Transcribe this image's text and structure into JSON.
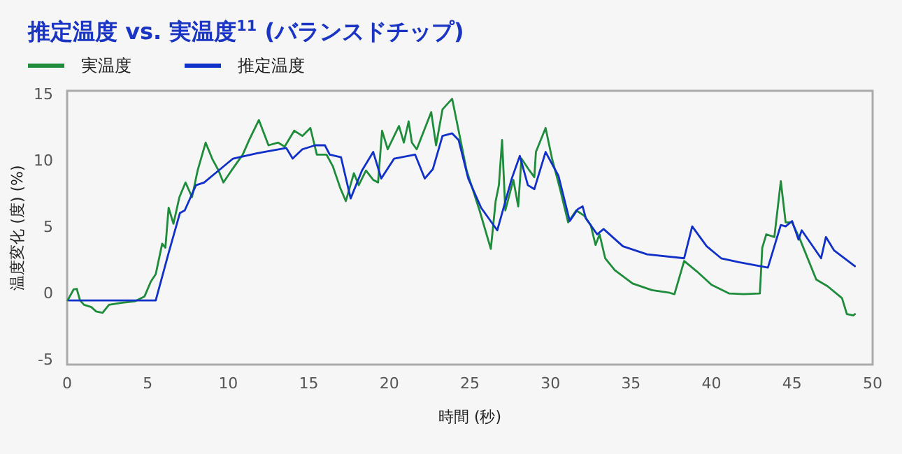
{
  "chart_data": {
    "type": "line",
    "title": "推定温度 vs. 実温度$^{11}$ (バランスドチップ)",
    "xlabel": "時間 (秒)",
    "ylabel": "温度変化 (度) (%)",
    "xlim": [
      0,
      50
    ],
    "ylim": [
      -5.4,
      15.2
    ],
    "xticks": [
      0,
      5,
      10,
      15,
      20,
      25,
      30,
      35,
      40,
      45,
      50
    ],
    "yticks": [
      -5,
      0,
      5,
      10,
      15
    ],
    "grid": false,
    "legend": "top left",
    "marker": "none",
    "line_style": "solid",
    "series": [
      {
        "name": "実温度",
        "color": "#1e8c3a",
        "x": [
          0.03,
          0.4,
          0.6,
          0.8,
          1.05,
          1.5,
          1.8,
          2.2,
          2.6,
          3.35,
          4.2,
          4.8,
          5.2,
          5.5,
          5.9,
          6.1,
          6.3,
          6.6,
          6.97,
          7.35,
          7.75,
          8.1,
          8.6,
          9.0,
          9.4,
          9.7,
          10.2,
          10.9,
          11.3,
          11.9,
          12.5,
          13.1,
          13.5,
          14.1,
          14.6,
          15.1,
          15.5,
          16.1,
          16.5,
          16.95,
          17.3,
          17.8,
          18.1,
          18.55,
          19.0,
          19.3,
          19.55,
          19.9,
          20.6,
          20.9,
          21.2,
          21.4,
          21.7,
          22.6,
          22.9,
          23.3,
          23.9,
          24.3,
          24.8,
          25.6,
          26.3,
          26.6,
          26.8,
          27.0,
          27.2,
          27.7,
          28.0,
          28.2,
          28.7,
          29.0,
          29.1,
          29.7,
          30.1,
          30.6,
          31.1,
          31.6,
          32.1,
          32.5,
          32.8,
          33.05,
          33.4,
          34.0,
          35.1,
          36.3,
          37.4,
          37.7,
          38.3,
          39.1,
          40.0,
          41.1,
          42.0,
          43.0,
          43.15,
          43.4,
          43.9,
          44.3,
          44.6,
          45.0,
          45.5,
          46.5,
          47.2,
          48.1,
          48.4,
          48.8,
          48.9
        ],
        "values": [
          -0.57,
          0.25,
          0.3,
          -0.57,
          -0.9,
          -1.07,
          -1.4,
          -1.5,
          -0.9,
          -0.75,
          -0.64,
          -0.28,
          0.85,
          1.4,
          3.7,
          3.4,
          6.4,
          5.2,
          7.2,
          8.3,
          7.2,
          9.2,
          11.3,
          10.1,
          9.2,
          8.3,
          9.2,
          10.4,
          11.5,
          13.0,
          11.1,
          11.3,
          11.0,
          12.2,
          11.8,
          12.4,
          10.4,
          10.4,
          9.5,
          7.9,
          6.9,
          9.0,
          8.1,
          9.2,
          8.5,
          8.3,
          12.2,
          10.8,
          12.55,
          11.3,
          12.9,
          11.3,
          10.8,
          13.6,
          11.1,
          13.8,
          14.6,
          12.2,
          9.2,
          6.2,
          3.3,
          6.9,
          8.1,
          11.5,
          6.2,
          8.5,
          6.5,
          10.1,
          9.2,
          8.7,
          10.6,
          12.4,
          10.1,
          7.8,
          5.3,
          6.2,
          5.8,
          5.1,
          3.6,
          4.4,
          2.6,
          1.7,
          0.7,
          0.2,
          0.0,
          -0.1,
          2.4,
          1.6,
          0.6,
          -0.05,
          -0.1,
          -0.05,
          3.4,
          4.4,
          4.2,
          8.4,
          5.3,
          5.3,
          4.0,
          1.0,
          0.5,
          -0.4,
          -1.6,
          -1.7,
          -1.6
        ]
      },
      {
        "name": "推定温度",
        "color": "#1030c8",
        "x": [
          0.1,
          5.5,
          6.3,
          7.0,
          7.3,
          8.0,
          8.5,
          9.2,
          10.3,
          11.8,
          13.6,
          14.0,
          14.6,
          15.4,
          16.0,
          16.3,
          17.0,
          17.6,
          18.3,
          19.0,
          19.5,
          20.3,
          21.6,
          22.2,
          22.7,
          23.3,
          23.9,
          24.3,
          24.9,
          25.7,
          26.7,
          27.6,
          28.1,
          28.6,
          29.0,
          29.7,
          30.5,
          31.2,
          31.7,
          32.0,
          32.2,
          32.9,
          33.3,
          34.5,
          36.0,
          38.3,
          38.8,
          39.7,
          40.6,
          41.7,
          43.5,
          44.3,
          44.6,
          45.0,
          45.4,
          45.6,
          46.8,
          47.1,
          47.6,
          48.9
        ],
        "values": [
          -0.57,
          -0.57,
          3.0,
          6.0,
          6.2,
          8.1,
          8.3,
          9.0,
          10.1,
          10.5,
          10.9,
          10.1,
          10.8,
          11.1,
          11.1,
          10.4,
          10.2,
          7.1,
          9.2,
          10.6,
          8.6,
          10.1,
          10.4,
          8.6,
          9.3,
          11.8,
          12.0,
          11.5,
          8.6,
          6.4,
          4.7,
          8.6,
          10.3,
          8.1,
          7.8,
          10.6,
          8.8,
          5.4,
          6.3,
          6.5,
          5.6,
          4.4,
          4.8,
          3.5,
          2.9,
          2.6,
          5.0,
          3.5,
          2.6,
          2.3,
          1.9,
          5.1,
          5.0,
          5.4,
          4.0,
          4.7,
          2.6,
          4.2,
          3.2,
          2.0
        ]
      }
    ]
  }
}
